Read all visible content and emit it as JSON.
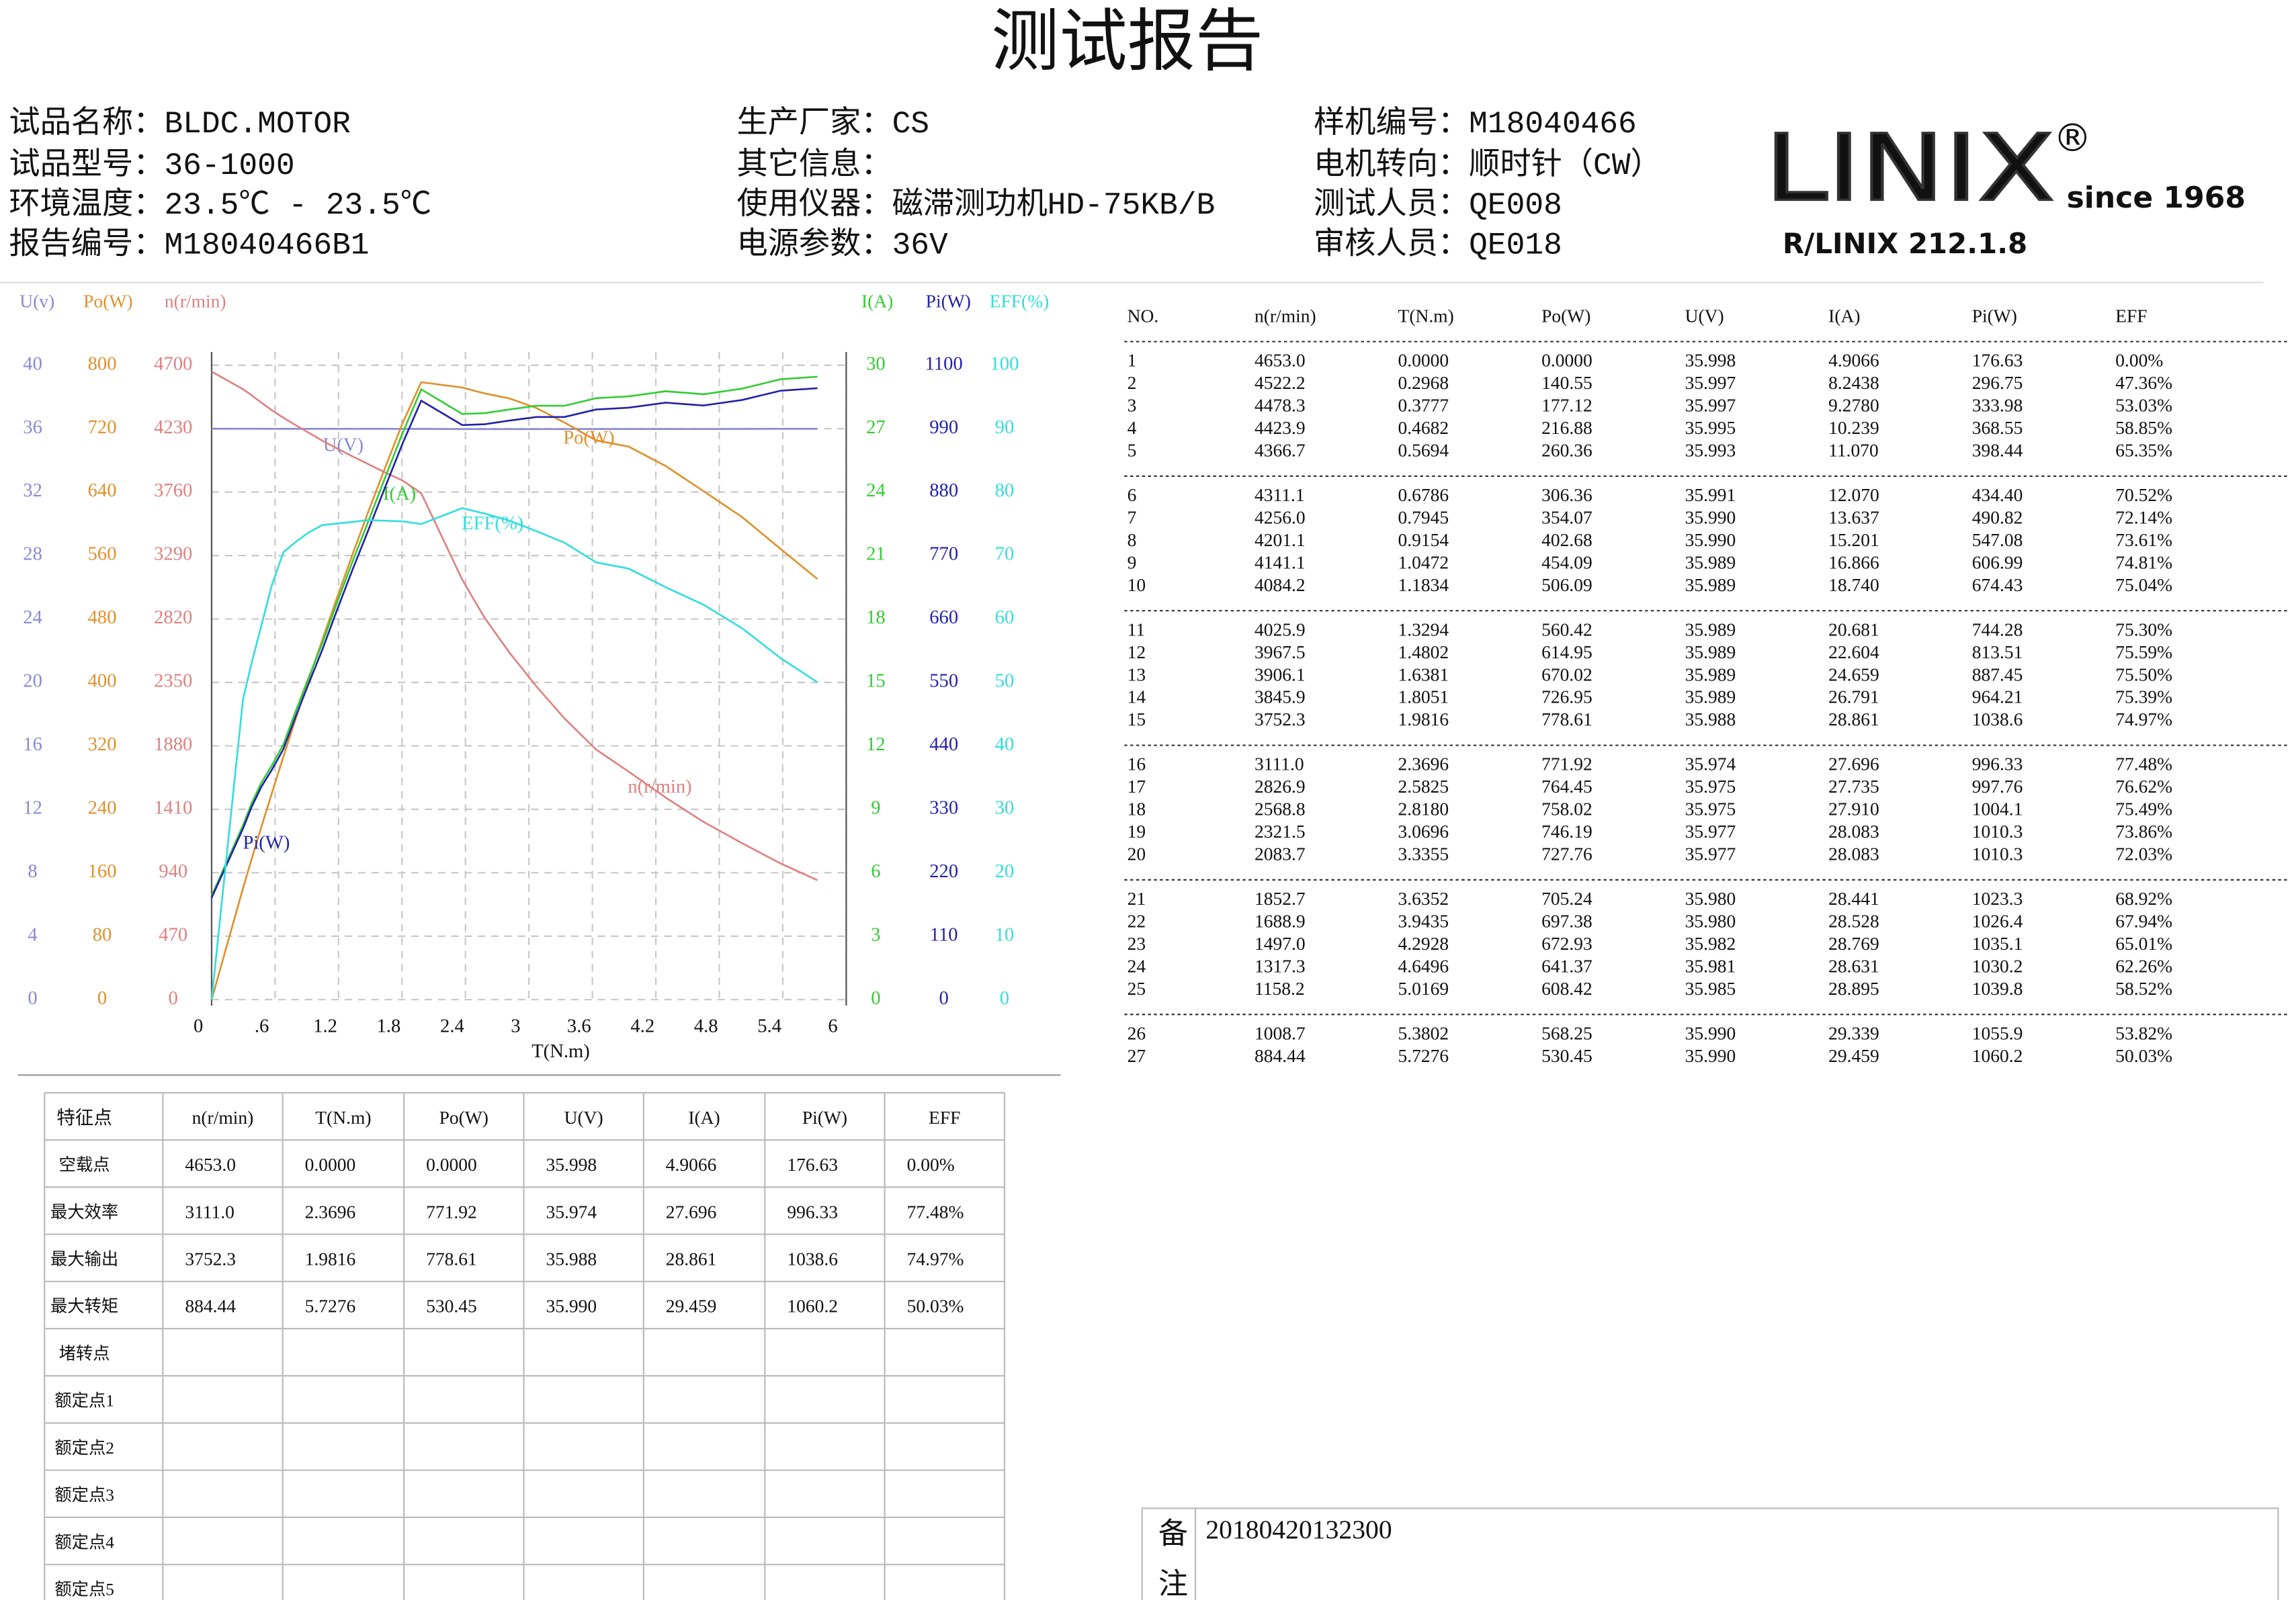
{
  "header": {
    "title": "测试报告"
  },
  "info": [
    [
      "试品名称：BLDC.MOTOR",
      "试品型号：36-1000",
      "环境温度：23.5℃ - 23.5℃",
      "报告编号：M18040466B1"
    ],
    [
      "生产厂家：CS",
      "其它信息：",
      "使用仪器：磁滞测功机HD-75KB/B",
      "电源参数：36V"
    ],
    [
      "样机编号：M18040466",
      "电机转向：顺时针（CW）",
      "测试人员：QE008",
      "审核人员：QE018"
    ]
  ],
  "logo": {
    "brand": "LINIX",
    "mark": "®",
    "since": "since 1968",
    "code": "R/LINIX 212.1.8"
  },
  "chart_data": {
    "type": "line",
    "x_label": "T(N.m)",
    "xlim": [
      0,
      6
    ],
    "xticks": [
      0,
      {
        "value": 0.6,
        "label": ".6"
      },
      1.2,
      1.8,
      2.4,
      3,
      3.6,
      4.2,
      4.8,
      5.4,
      6
    ],
    "grid": true,
    "x": [
      0,
      0.2968,
      0.3777,
      0.4682,
      0.5694,
      0.6786,
      0.7945,
      0.9154,
      1.0472,
      1.1834,
      1.3294,
      1.4802,
      1.6381,
      1.8051,
      1.9816,
      2.3696,
      2.5825,
      2.818,
      3.0696,
      3.3355,
      3.6352,
      3.9435,
      4.2928,
      4.6496,
      5.0169,
      5.3802,
      5.7276
    ],
    "axes": [
      {
        "label": "U(v)",
        "side": "left",
        "color": "#8888d8",
        "ylim": [
          0,
          40
        ],
        "yticks": [
          0,
          4,
          8,
          12,
          16,
          20,
          24,
          28,
          32,
          36,
          40
        ],
        "series": {
          "name": "U(V)",
          "values": [
            35.998,
            35.997,
            35.997,
            35.995,
            35.993,
            35.991,
            35.99,
            35.99,
            35.989,
            35.989,
            35.989,
            35.989,
            35.989,
            35.989,
            35.988,
            35.974,
            35.975,
            35.975,
            35.977,
            35.977,
            35.98,
            35.98,
            35.982,
            35.981,
            35.985,
            35.99,
            35.99
          ]
        }
      },
      {
        "label": "Po(W)",
        "side": "left",
        "color": "#e0902a",
        "ylim": [
          0,
          800
        ],
        "yticks": [
          0,
          80,
          160,
          240,
          320,
          400,
          480,
          560,
          640,
          720,
          800
        ],
        "series": {
          "name": "Po(W)",
          "values": [
            0,
            140.55,
            177.12,
            216.88,
            260.36,
            306.36,
            354.07,
            402.68,
            454.09,
            506.09,
            560.42,
            614.95,
            670.02,
            726.95,
            778.61,
            771.92,
            764.45,
            758.02,
            746.19,
            727.76,
            705.24,
            697.38,
            672.93,
            641.37,
            608.42,
            568.25,
            530.45
          ]
        }
      },
      {
        "label": "n(r/min)",
        "side": "left",
        "color": "#e08080",
        "ylim": [
          0,
          4700
        ],
        "yticks": [
          0,
          470,
          940,
          1410,
          1880,
          2350,
          2820,
          3290,
          3760,
          4230,
          4700
        ],
        "series": {
          "name": "n(r/min)",
          "values": [
            4653.0,
            4522.2,
            4478.3,
            4423.9,
            4366.7,
            4311.1,
            4256.0,
            4201.1,
            4141.1,
            4084.2,
            4025.9,
            3967.5,
            3906.1,
            3845.9,
            3752.3,
            3111.0,
            2826.9,
            2568.8,
            2321.5,
            2083.7,
            1852.7,
            1688.9,
            1497.0,
            1317.3,
            1158.2,
            1008.7,
            884.44
          ]
        }
      },
      {
        "label": "I(A)",
        "side": "right",
        "color": "#33cc33",
        "ylim": [
          0,
          30
        ],
        "yticks": [
          0,
          3,
          6,
          9,
          12,
          15,
          18,
          21,
          24,
          27,
          30
        ],
        "series": {
          "name": "I(A)",
          "values": [
            4.9066,
            8.2438,
            9.278,
            10.239,
            11.07,
            12.07,
            13.637,
            15.201,
            16.866,
            18.74,
            20.681,
            22.604,
            24.659,
            26.791,
            28.861,
            27.696,
            27.735,
            27.91,
            28.083,
            28.083,
            28.441,
            28.528,
            28.769,
            28.631,
            28.895,
            29.339,
            29.459
          ]
        }
      },
      {
        "label": "Pi(W)",
        "side": "right",
        "color": "#2222aa",
        "ylim": [
          0,
          1100
        ],
        "yticks": [
          0,
          110,
          220,
          330,
          440,
          550,
          660,
          770,
          880,
          990,
          1100
        ],
        "series": {
          "name": "Pi(W)",
          "values": [
            176.63,
            296.75,
            333.98,
            368.55,
            398.44,
            434.4,
            490.82,
            547.08,
            606.99,
            674.43,
            744.28,
            813.51,
            887.45,
            964.21,
            1038.6,
            996.33,
            997.76,
            1004.1,
            1010.3,
            1010.3,
            1023.3,
            1026.4,
            1035.1,
            1030.2,
            1039.8,
            1055.9,
            1060.2
          ]
        }
      },
      {
        "label": "EFF(%)",
        "side": "right",
        "color": "#33dddd",
        "ylim": [
          0,
          100
        ],
        "yticks": [
          0,
          10,
          20,
          30,
          40,
          50,
          60,
          70,
          80,
          90,
          100
        ],
        "series": {
          "name": "EFF(%)",
          "values": [
            0,
            47.36,
            53.03,
            58.85,
            65.35,
            70.52,
            72.14,
            73.61,
            74.81,
            75.04,
            75.3,
            75.59,
            75.5,
            75.39,
            74.97,
            77.48,
            76.62,
            75.49,
            73.86,
            72.03,
            68.92,
            67.94,
            65.01,
            62.26,
            58.52,
            53.82,
            50.03
          ]
        }
      }
    ]
  },
  "test_table": {
    "header": [
      "NO.",
      "n(r/min)",
      "T(N.m)",
      "Po(W)",
      "U(V)",
      "I(A)",
      "Pi(W)",
      "EFF"
    ],
    "rows": [
      [
        "1",
        "4653.0",
        "0.0000",
        "0.0000",
        "35.998",
        "4.9066",
        "176.63",
        "0.00%"
      ],
      [
        "2",
        "4522.2",
        "0.2968",
        "140.55",
        "35.997",
        "8.2438",
        "296.75",
        "47.36%"
      ],
      [
        "3",
        "4478.3",
        "0.3777",
        "177.12",
        "35.997",
        "9.2780",
        "333.98",
        "53.03%"
      ],
      [
        "4",
        "4423.9",
        "0.4682",
        "216.88",
        "35.995",
        "10.239",
        "368.55",
        "58.85%"
      ],
      [
        "5",
        "4366.7",
        "0.5694",
        "260.36",
        "35.993",
        "11.070",
        "398.44",
        "65.35%"
      ],
      [
        "6",
        "4311.1",
        "0.6786",
        "306.36",
        "35.991",
        "12.070",
        "434.40",
        "70.52%"
      ],
      [
        "7",
        "4256.0",
        "0.7945",
        "354.07",
        "35.990",
        "13.637",
        "490.82",
        "72.14%"
      ],
      [
        "8",
        "4201.1",
        "0.9154",
        "402.68",
        "35.990",
        "15.201",
        "547.08",
        "73.61%"
      ],
      [
        "9",
        "4141.1",
        "1.0472",
        "454.09",
        "35.989",
        "16.866",
        "606.99",
        "74.81%"
      ],
      [
        "10",
        "4084.2",
        "1.1834",
        "506.09",
        "35.989",
        "18.740",
        "674.43",
        "75.04%"
      ],
      [
        "11",
        "4025.9",
        "1.3294",
        "560.42",
        "35.989",
        "20.681",
        "744.28",
        "75.30%"
      ],
      [
        "12",
        "3967.5",
        "1.4802",
        "614.95",
        "35.989",
        "22.604",
        "813.51",
        "75.59%"
      ],
      [
        "13",
        "3906.1",
        "1.6381",
        "670.02",
        "35.989",
        "24.659",
        "887.45",
        "75.50%"
      ],
      [
        "14",
        "3845.9",
        "1.8051",
        "726.95",
        "35.989",
        "26.791",
        "964.21",
        "75.39%"
      ],
      [
        "15",
        "3752.3",
        "1.9816",
        "778.61",
        "35.988",
        "28.861",
        "1038.6",
        "74.97%"
      ],
      [
        "16",
        "3111.0",
        "2.3696",
        "771.92",
        "35.974",
        "27.696",
        "996.33",
        "77.48%"
      ],
      [
        "17",
        "2826.9",
        "2.5825",
        "764.45",
        "35.975",
        "27.735",
        "997.76",
        "76.62%"
      ],
      [
        "18",
        "2568.8",
        "2.8180",
        "758.02",
        "35.975",
        "27.910",
        "1004.1",
        "75.49%"
      ],
      [
        "19",
        "2321.5",
        "3.0696",
        "746.19",
        "35.977",
        "28.083",
        "1010.3",
        "73.86%"
      ],
      [
        "20",
        "2083.7",
        "3.3355",
        "727.76",
        "35.977",
        "28.083",
        "1010.3",
        "72.03%"
      ],
      [
        "21",
        "1852.7",
        "3.6352",
        "705.24",
        "35.980",
        "28.441",
        "1023.3",
        "68.92%"
      ],
      [
        "22",
        "1688.9",
        "3.9435",
        "697.38",
        "35.980",
        "28.528",
        "1026.4",
        "67.94%"
      ],
      [
        "23",
        "1497.0",
        "4.2928",
        "672.93",
        "35.982",
        "28.769",
        "1035.1",
        "65.01%"
      ],
      [
        "24",
        "1317.3",
        "4.6496",
        "641.37",
        "35.981",
        "28.631",
        "1030.2",
        "62.26%"
      ],
      [
        "25",
        "1158.2",
        "5.0169",
        "608.42",
        "35.985",
        "28.895",
        "1039.8",
        "58.52%"
      ],
      [
        "26",
        "1008.7",
        "5.3802",
        "568.25",
        "35.990",
        "29.339",
        "1055.9",
        "53.82%"
      ],
      [
        "27",
        "884.44",
        "5.7276",
        "530.45",
        "35.990",
        "29.459",
        "1060.2",
        "50.03%"
      ]
    ]
  },
  "feature_table": {
    "header": [
      "特征点",
      "n(r/min)",
      "T(N.m)",
      "Po(W)",
      "U(V)",
      "I(A)",
      "Pi(W)",
      "EFF"
    ],
    "rows": [
      [
        "空载点",
        "4653.0",
        "0.0000",
        "0.0000",
        "35.998",
        "4.9066",
        "176.63",
        "0.00%"
      ],
      [
        "最大效率",
        "3111.0",
        "2.3696",
        "771.92",
        "35.974",
        "27.696",
        "996.33",
        "77.48%"
      ],
      [
        "最大输出",
        "3752.3",
        "1.9816",
        "778.61",
        "35.988",
        "28.861",
        "1038.6",
        "74.97%"
      ],
      [
        "最大转矩",
        "884.44",
        "5.7276",
        "530.45",
        "35.990",
        "29.459",
        "1060.2",
        "50.03%"
      ],
      [
        "堵转点"
      ],
      [
        "额定点1"
      ],
      [
        "额定点2"
      ],
      [
        "额定点3"
      ],
      [
        "额定点4"
      ],
      [
        "额定点5"
      ]
    ]
  },
  "remark": {
    "label": "备注",
    "value": "20180420132300"
  }
}
